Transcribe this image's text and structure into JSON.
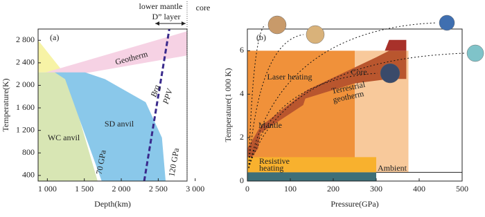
{
  "chart_data": [
    {
      "type": "region",
      "xlabel": "Depth(km)",
      "ylabel": "Temperature(K)",
      "xlim": [
        875,
        2890
      ],
      "ylim": [
        300,
        3000
      ],
      "xticks": [
        {
          "value": 1000,
          "label": "1 000"
        },
        {
          "value": 1500,
          "label": "1 500"
        },
        {
          "value": 2000,
          "label": "2 000"
        },
        {
          "value": 2500,
          "label": "2 500"
        },
        {
          "value": 3000,
          "label": "3 000"
        }
      ],
      "yticks": [
        400,
        {
          "value": 800,
          "label": "800"
        },
        {
          "value": 1200,
          "label": "1 200"
        },
        {
          "value": 1600,
          "label": "1 600"
        },
        {
          "value": 2000,
          "label": "2 000"
        },
        {
          "value": 2400,
          "label": "2 400"
        },
        {
          "value": 2800,
          "label": "2 800"
        }
      ],
      "regions": [
        {
          "color": "#f7f3a6",
          "x": [
            875,
            1220,
            875
          ],
          "y": [
            2800,
            2230,
            2230
          ]
        },
        {
          "color": "#f6d2e4",
          "x": [
            875,
            2890,
            2890,
            875
          ],
          "y": [
            2190,
            2960,
            2530,
            2070
          ]
        },
        {
          "color": "#d8e6b4",
          "x": [
            875,
            1250,
            1680,
            875
          ],
          "y": [
            2230,
            2230,
            300,
            300
          ]
        },
        {
          "color": "#8ac8ea",
          "x": [
            1100,
            1510,
            1780,
            2330,
            2550,
            2600,
            1735,
            1240
          ],
          "y": [
            2230,
            2230,
            2110,
            1700,
            1070,
            300,
            300,
            2110
          ]
        }
      ],
      "series": [
        {
          "color": "#3a2a8c",
          "x": [
            2310,
            2650
          ],
          "y": [
            300,
            3000
          ]
        }
      ],
      "annotations": [
        "(a)",
        "Geotherm",
        "WC anvil",
        "SD anvil",
        "70 GPa",
        "120 GPa",
        "Brg",
        "PPV",
        "lower mantle",
        "D” layer",
        "core"
      ]
    },
    {
      "type": "region",
      "xlabel": "Pressure(GPa)",
      "ylabel": "Temperature(1 000 K)",
      "xlim": [
        0,
        500
      ],
      "ylim": [
        0,
        7
      ],
      "xticks": [
        0,
        100,
        200,
        300,
        400,
        500
      ],
      "yticks": [
        0,
        2,
        4,
        6
      ],
      "regions": [
        {
          "color": "#f0913a",
          "x": [
            0,
            250,
            250,
            0
          ],
          "y": [
            0.4,
            0.4,
            6,
            6
          ]
        },
        {
          "color": "#f8c99b",
          "x": [
            250,
            375,
            375,
            250
          ],
          "y": [
            0.4,
            0.4,
            6,
            6
          ]
        },
        {
          "color": "#b9562e",
          "x": [
            0,
            25,
            30,
            130,
            135,
            250,
            330,
            370,
            370,
            330,
            300,
            140,
            30,
            0
          ],
          "y": [
            0.8,
            1.5,
            2.2,
            3.5,
            3.8,
            4.5,
            4.7,
            4.7,
            6.0,
            6.0,
            5.7,
            4.2,
            2.5,
            1.5
          ]
        },
        {
          "color": "#a8312a",
          "x": [
            320,
            330,
            370,
            370
          ],
          "y": [
            6.0,
            6.5,
            6.5,
            6.0
          ]
        },
        {
          "color": "#f8b12e",
          "x": [
            0,
            300,
            300,
            0
          ],
          "y": [
            0.4,
            0.4,
            1.1,
            1.1
          ]
        },
        {
          "color": "#3e6f78",
          "x": [
            0,
            300,
            300,
            0
          ],
          "y": [
            0,
            0,
            0.4,
            0.4
          ]
        }
      ],
      "annotations": [
        "(b)",
        "Laser heating",
        "Terrestrial",
        "geotherm",
        "Mantle",
        "Core",
        "Resistive",
        "heating",
        "Ambient"
      ]
    }
  ]
}
